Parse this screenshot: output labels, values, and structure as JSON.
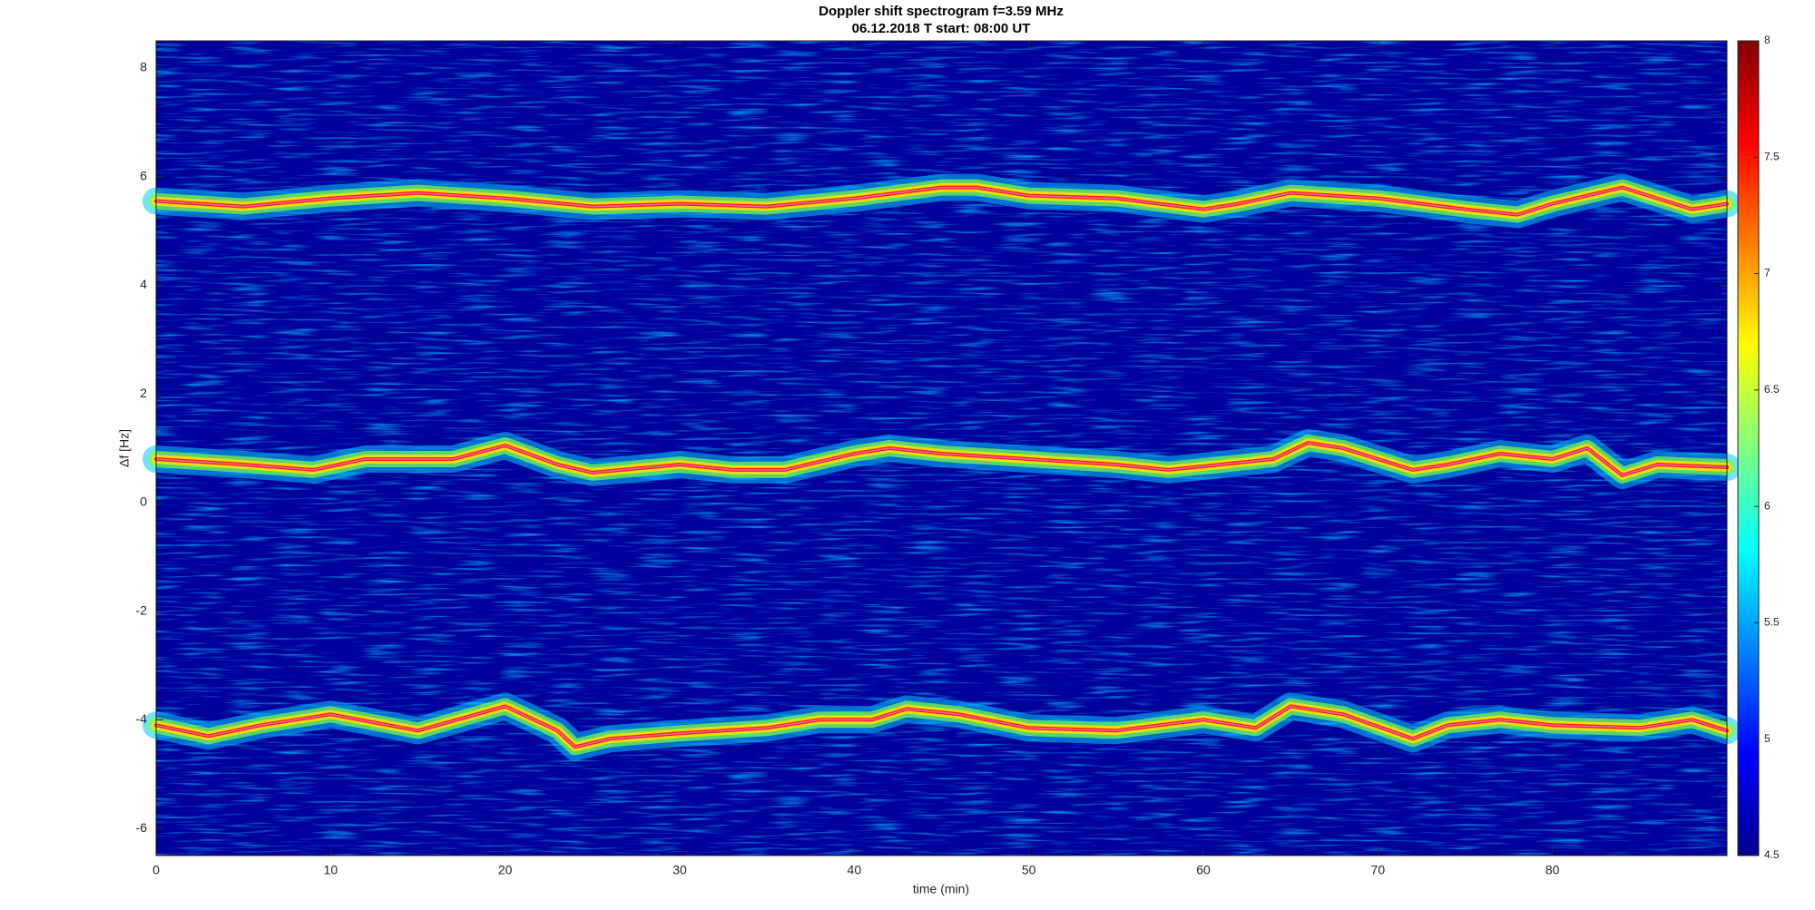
{
  "chart_data": {
    "type": "spectrogram",
    "title": "Doppler shift spectrogram f=3.59 MHz",
    "subtitle": "06.12.2018    T start: 08:00 UT",
    "x_label": "time (min)",
    "y_label": "Δf [Hz]",
    "xlim": [
      0,
      90
    ],
    "xticks": [
      0,
      10,
      20,
      30,
      40,
      50,
      60,
      70,
      80
    ],
    "ylim": [
      -6.5,
      8.5
    ],
    "yticks": [
      -6,
      -4,
      -2,
      0,
      2,
      4,
      6,
      8
    ],
    "colormap": "jet",
    "clim": [
      4.5,
      8
    ],
    "cticks": [
      4.5,
      5,
      5.5,
      6,
      6.5,
      7,
      7.5,
      8
    ],
    "series": [
      {
        "x": [
          0,
          5,
          10,
          15,
          20,
          25,
          30,
          35,
          40,
          45,
          47,
          50,
          55,
          60,
          62,
          65,
          70,
          75,
          78,
          80,
          84,
          88,
          90
        ],
        "values": [
          5.55,
          5.45,
          5.6,
          5.7,
          5.6,
          5.45,
          5.5,
          5.45,
          5.6,
          5.8,
          5.8,
          5.65,
          5.6,
          5.4,
          5.5,
          5.7,
          5.6,
          5.4,
          5.3,
          5.5,
          5.8,
          5.4,
          5.5
        ]
      },
      {
        "x": [
          0,
          5,
          9,
          12,
          17,
          20,
          23,
          25,
          30,
          33,
          36,
          40,
          42,
          45,
          50,
          55,
          58,
          61,
          64,
          66,
          68,
          70,
          72,
          74,
          77,
          80,
          82,
          84,
          86,
          90
        ],
        "values": [
          0.8,
          0.7,
          0.6,
          0.8,
          0.8,
          1.05,
          0.7,
          0.55,
          0.7,
          0.6,
          0.6,
          0.9,
          1.0,
          0.9,
          0.8,
          0.7,
          0.6,
          0.7,
          0.8,
          1.1,
          1.0,
          0.8,
          0.6,
          0.7,
          0.9,
          0.8,
          1.0,
          0.5,
          0.7,
          0.65
        ]
      },
      {
        "x": [
          0,
          3,
          6,
          10,
          15,
          20,
          23,
          24,
          26,
          30,
          35,
          38,
          41,
          43,
          46,
          50,
          55,
          60,
          63,
          65,
          68,
          72,
          74,
          77,
          80,
          85,
          88,
          90
        ],
        "values": [
          -4.1,
          -4.3,
          -4.1,
          -3.9,
          -4.2,
          -3.75,
          -4.2,
          -4.5,
          -4.35,
          -4.25,
          -4.15,
          -4.0,
          -4.0,
          -3.8,
          -3.9,
          -4.15,
          -4.2,
          -4.0,
          -4.15,
          -3.75,
          -3.9,
          -4.35,
          -4.1,
          -4.0,
          -4.1,
          -4.15,
          -4.0,
          -4.2
        ]
      }
    ]
  }
}
